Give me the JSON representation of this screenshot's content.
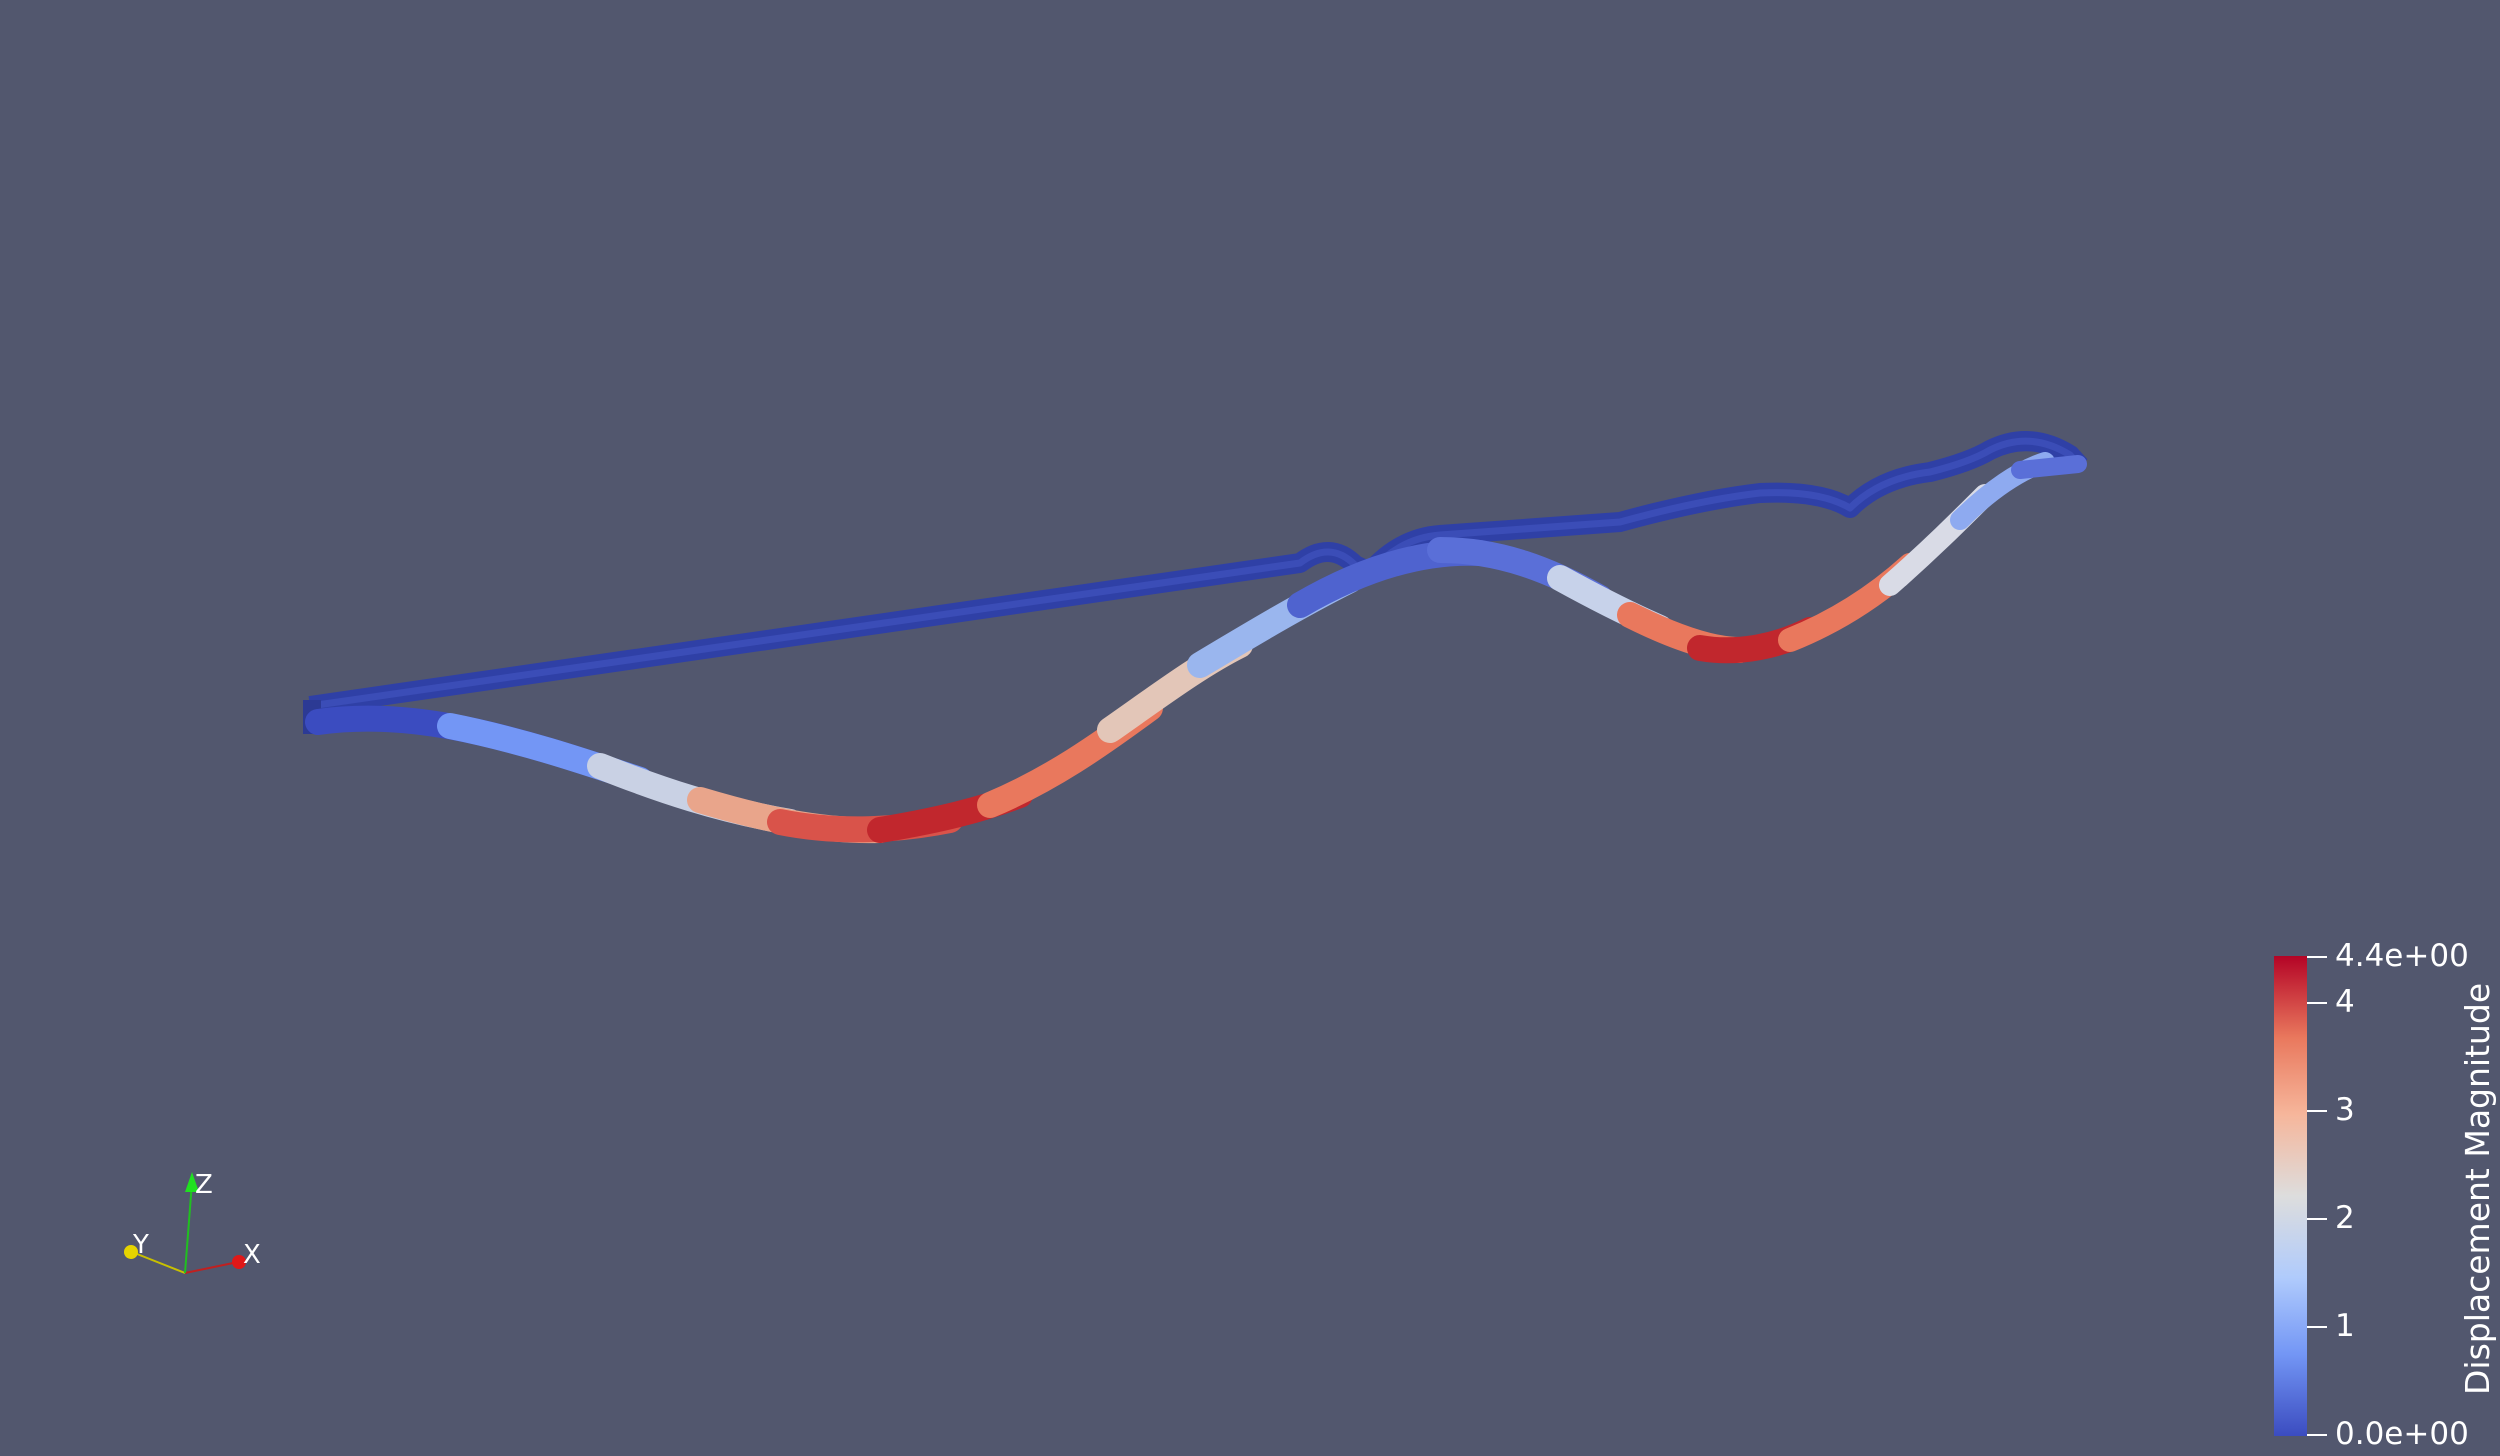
{
  "scalar_bar": {
    "title": "Displacement Magnitude",
    "max_label": "4.4e+00",
    "min_label": "0.0e+00",
    "ticks": [
      "4",
      "3",
      "2",
      "1"
    ],
    "colormap": [
      "#3b4cc0",
      "#7396f5",
      "#b0cbfc",
      "#dddddd",
      "#f6b69b",
      "#e9785d",
      "#b40426"
    ]
  },
  "orientation_axes": {
    "x_label": "X",
    "y_label": "Y",
    "z_label": "Z",
    "x_color": "#e01818",
    "y_color": "#e6d400",
    "z_color": "#20e020"
  },
  "colors": {
    "background": "#52576e",
    "undeformed_beam": "#3041a6"
  }
}
